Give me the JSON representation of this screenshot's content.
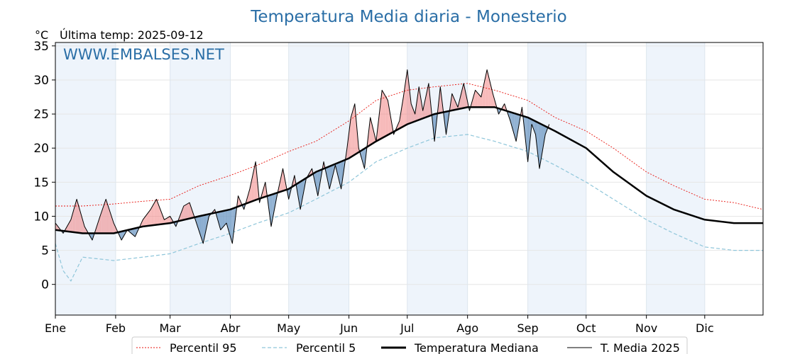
{
  "chart_data": {
    "type": "line",
    "title": "Temperatura Media diaria - Monesterio",
    "unit_label": "°C",
    "last_temp_label": "Última temp: 2025-09-12",
    "watermark": "WWW.EMBALSES.NET",
    "xlim": [
      1,
      365
    ],
    "ylim": [
      -4.5,
      35.5
    ],
    "grid": true,
    "legend_position": "bottom-center",
    "y_ticks": [
      0,
      5,
      10,
      15,
      20,
      25,
      30,
      35
    ],
    "x_ticks": [
      {
        "day": 1,
        "label": "Ene"
      },
      {
        "day": 32,
        "label": "Feb"
      },
      {
        "day": 60,
        "label": "Mar"
      },
      {
        "day": 91,
        "label": "Abr"
      },
      {
        "day": 121,
        "label": "May"
      },
      {
        "day": 152,
        "label": "Jun"
      },
      {
        "day": 182,
        "label": "Jul"
      },
      {
        "day": 213,
        "label": "Ago"
      },
      {
        "day": 244,
        "label": "Sep"
      },
      {
        "day": 274,
        "label": "Oct"
      },
      {
        "day": 305,
        "label": "Nov"
      },
      {
        "day": 335,
        "label": "Dic"
      }
    ],
    "colors": {
      "p95": "#e8150f",
      "p5": "#8fc6da",
      "median": "#000000",
      "current": "#000000",
      "above": "#f08080",
      "below": "#5f8fbd",
      "title": "#2a6ea6",
      "month_band": "#eef4fb"
    },
    "series": [
      {
        "name": "Percentil 95",
        "style": "dotted-red",
        "x": [
          1,
          15,
          31,
          46,
          60,
          75,
          91,
          105,
          121,
          135,
          152,
          166,
          182,
          196,
          213,
          227,
          244,
          258,
          274,
          288,
          305,
          319,
          335,
          350,
          365
        ],
        "y": [
          11.5,
          11.5,
          11.8,
          12.2,
          12.5,
          14.5,
          16.0,
          17.5,
          19.5,
          21.0,
          24.0,
          27.0,
          28.5,
          29.0,
          29.5,
          28.5,
          27.0,
          24.5,
          22.5,
          20.0,
          16.5,
          14.5,
          12.5,
          12.0,
          11.0
        ]
      },
      {
        "name": "Percentil 5",
        "style": "dashed-lightblue",
        "x": [
          1,
          5,
          9,
          15,
          31,
          46,
          60,
          75,
          91,
          105,
          121,
          135,
          152,
          166,
          182,
          196,
          213,
          227,
          244,
          258,
          274,
          288,
          305,
          319,
          335,
          350,
          365
        ],
        "y": [
          6.0,
          2.0,
          0.5,
          4.0,
          3.5,
          4.0,
          4.5,
          6.0,
          7.5,
          9.0,
          10.5,
          12.5,
          15.0,
          18.0,
          20.0,
          21.5,
          22.0,
          21.0,
          19.5,
          17.5,
          15.0,
          12.5,
          9.5,
          7.5,
          5.5,
          5.0,
          5.0
        ]
      },
      {
        "name": "Temperatura Mediana",
        "style": "thick-black",
        "x": [
          1,
          15,
          31,
          46,
          60,
          75,
          91,
          105,
          121,
          135,
          152,
          166,
          182,
          196,
          213,
          227,
          244,
          258,
          274,
          288,
          305,
          319,
          335,
          350,
          365
        ],
        "y": [
          8.0,
          7.5,
          7.5,
          8.5,
          9.0,
          10.0,
          11.0,
          12.5,
          14.0,
          16.5,
          18.5,
          21.0,
          23.5,
          25.0,
          26.0,
          26.0,
          24.5,
          22.5,
          20.0,
          16.5,
          13.0,
          11.0,
          9.5,
          9.0,
          9.0
        ]
      },
      {
        "name": "T. Media 2025",
        "style": "thin-black",
        "x": [
          1,
          5,
          9,
          12,
          16,
          20,
          24,
          27,
          31,
          35,
          38,
          42,
          46,
          50,
          53,
          57,
          60,
          63,
          67,
          70,
          73,
          77,
          80,
          83,
          86,
          89,
          92,
          95,
          98,
          101,
          104,
          106,
          109,
          112,
          115,
          118,
          121,
          124,
          127,
          130,
          133,
          136,
          139,
          142,
          145,
          148,
          151,
          153,
          155,
          157,
          160,
          163,
          166,
          169,
          172,
          175,
          178,
          180,
          182,
          184,
          186,
          188,
          190,
          193,
          196,
          199,
          202,
          205,
          208,
          211,
          214,
          217,
          220,
          223,
          226,
          229,
          232,
          235,
          238,
          241,
          244,
          246,
          248,
          250,
          253,
          255
        ],
        "y": [
          9.0,
          7.5,
          9.5,
          12.5,
          8.5,
          6.5,
          10.0,
          12.5,
          9.0,
          6.5,
          8.0,
          7.0,
          9.5,
          11.0,
          12.5,
          9.5,
          10.0,
          8.5,
          11.5,
          12.0,
          9.5,
          6.0,
          10.0,
          11.0,
          8.0,
          9.0,
          6.0,
          13.0,
          11.0,
          14.0,
          18.0,
          12.0,
          15.0,
          8.5,
          13.0,
          17.0,
          12.5,
          16.0,
          11.0,
          15.5,
          17.0,
          13.0,
          18.0,
          14.0,
          17.5,
          14.0,
          20.0,
          24.5,
          26.5,
          20.0,
          17.0,
          24.5,
          21.0,
          28.5,
          27.0,
          22.0,
          24.0,
          27.5,
          31.5,
          26.5,
          25.0,
          29.0,
          25.5,
          29.5,
          21.0,
          29.0,
          22.0,
          28.0,
          26.0,
          29.5,
          25.5,
          28.5,
          27.5,
          31.5,
          28.0,
          25.0,
          26.5,
          24.0,
          21.0,
          26.0,
          18.0,
          23.5,
          22.0,
          17.0,
          22.0,
          23.5
        ]
      }
    ]
  },
  "legend": [
    {
      "label": "Percentil 95"
    },
    {
      "label": "Percentil 5"
    },
    {
      "label": "Temperatura Mediana"
    },
    {
      "label": "T. Media 2025"
    }
  ]
}
